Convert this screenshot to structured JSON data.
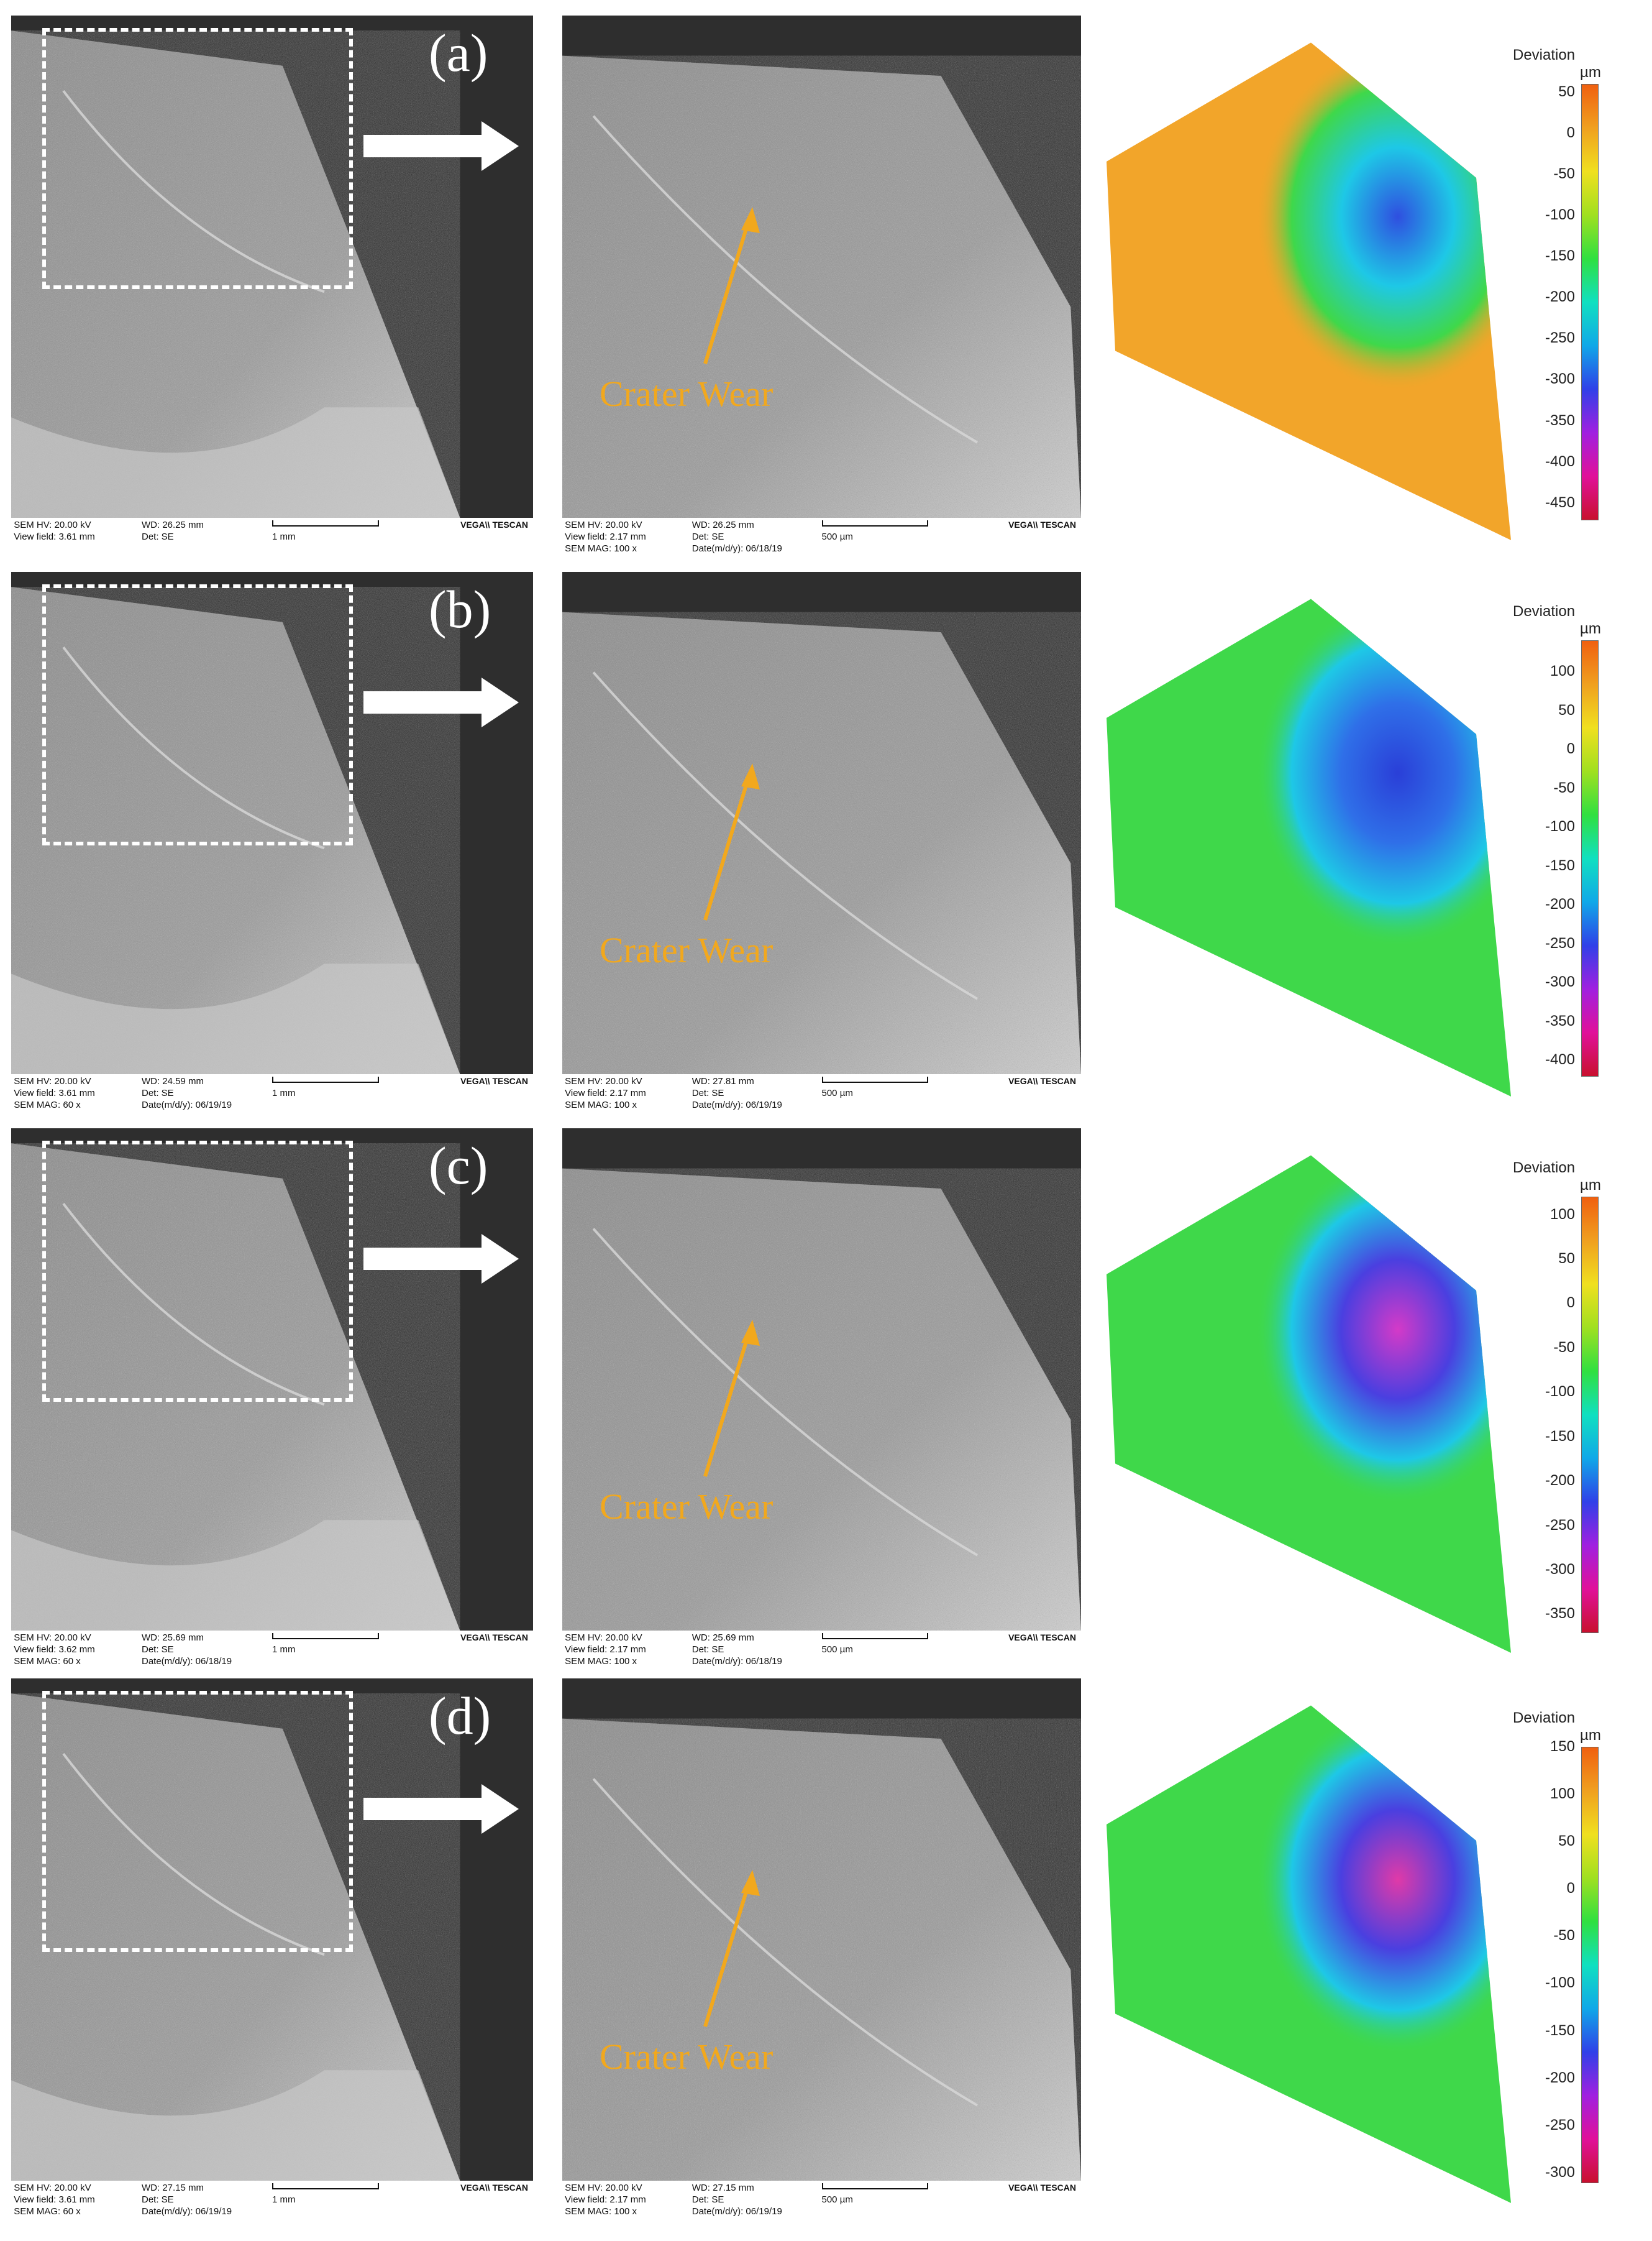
{
  "panels": [
    {
      "label": "(a)",
      "crater_label": "Crater Wear",
      "sem_left": {
        "line1": [
          "SEM HV: 20.00 kV",
          "WD: 26.25 mm"
        ],
        "line2": [
          "View field: 3.61 mm",
          "Det: SE",
          "1 mm"
        ],
        "line3": [
          "",
          ""
        ],
        "logo": "VEGA\\\\ TESCAN"
      },
      "sem_right": {
        "line1": [
          "SEM HV: 20.00 kV",
          "WD: 26.25 mm"
        ],
        "line2": [
          "View field: 2.17 mm",
          "Det: SE",
          "500 µm"
        ],
        "line3": [
          "SEM MAG: 100 x",
          "Date(m/d/y): 06/18/19"
        ],
        "logo": "VEGA\\\\ TESCAN"
      },
      "legend": {
        "title": "Deviation",
        "unit": "µm",
        "ticks": [
          "50",
          "0",
          "-50",
          "-100",
          "-150",
          "-200",
          "-250",
          "-300",
          "-350",
          "-400",
          "-450"
        ],
        "range": [
          -470,
          60
        ]
      },
      "map_colors": {
        "base": "#f2a52a",
        "crater_outer": "#3fd84a",
        "crater_mid": "#1ec8e6",
        "crater_core": "#2f4fe0"
      }
    },
    {
      "label": "(b)",
      "crater_label": "Crater Wear",
      "sem_left": {
        "line1": [
          "SEM HV: 20.00 kV",
          "WD: 24.59 mm"
        ],
        "line2": [
          "View field: 3.61 mm",
          "Det: SE",
          "1 mm"
        ],
        "line3": [
          "SEM MAG: 60 x",
          "Date(m/d/y): 06/19/19"
        ],
        "logo": "VEGA\\\\ TESCAN"
      },
      "sem_right": {
        "line1": [
          "SEM HV: 20.00 kV",
          "WD: 27.81 mm"
        ],
        "line2": [
          "View field: 2.17 mm",
          "Det: SE",
          "500 µm"
        ],
        "line3": [
          "SEM MAG: 100 x",
          "Date(m/d/y): 06/19/19"
        ],
        "logo": "VEGA\\\\ TESCAN"
      },
      "legend": {
        "title": "Deviation",
        "unit": "µm",
        "ticks": [
          "100",
          "50",
          "0",
          "-50",
          "-100",
          "-150",
          "-200",
          "-250",
          "-300",
          "-350",
          "-400"
        ],
        "range": [
          -420,
          140
        ]
      },
      "map_colors": {
        "base": "#3fd84a",
        "crater_outer": "#1ec8e6",
        "crater_mid": "#2f6fe8",
        "crater_core": "#2a3fd8"
      }
    },
    {
      "label": "(c)",
      "crater_label": "Crater Wear",
      "sem_left": {
        "line1": [
          "SEM HV: 20.00 kV",
          "WD: 25.69 mm"
        ],
        "line2": [
          "View field: 3.62 mm",
          "Det: SE",
          "1 mm"
        ],
        "line3": [
          "SEM MAG: 60 x",
          "Date(m/d/y): 06/18/19"
        ],
        "logo": "VEGA\\\\ TESCAN"
      },
      "sem_right": {
        "line1": [
          "SEM HV: 20.00 kV",
          "WD: 25.69 mm"
        ],
        "line2": [
          "View field: 2.17 mm",
          "Det: SE",
          "500 µm"
        ],
        "line3": [
          "SEM MAG: 100 x",
          "Date(m/d/y): 06/18/19"
        ],
        "logo": "VEGA\\\\ TESCAN"
      },
      "legend": {
        "title": "Deviation",
        "unit": "µm",
        "ticks": [
          "100",
          "50",
          "0",
          "-50",
          "-100",
          "-150",
          "-200",
          "-250",
          "-300",
          "-350"
        ],
        "range": [
          -370,
          120
        ]
      },
      "map_colors": {
        "base": "#3fd84a",
        "crater_outer": "#1ec8e6",
        "crater_mid": "#4a3fe0",
        "crater_core": "#d43ac8"
      }
    },
    {
      "label": "(d)",
      "crater_label": "Crater Wear",
      "sem_left": {
        "line1": [
          "SEM HV: 20.00 kV",
          "WD: 27.15 mm"
        ],
        "line2": [
          "View field: 3.61 mm",
          "Det: SE",
          "1 mm"
        ],
        "line3": [
          "SEM MAG: 60 x",
          "Date(m/d/y): 06/19/19"
        ],
        "logo": "VEGA\\\\ TESCAN"
      },
      "sem_right": {
        "line1": [
          "SEM HV: 20.00 kV",
          "WD: 27.15 mm"
        ],
        "line2": [
          "View field: 2.17 mm",
          "Det: SE",
          "500 µm"
        ],
        "line3": [
          "SEM MAG: 100 x",
          "Date(m/d/y): 06/19/19"
        ],
        "logo": "VEGA\\\\ TESCAN"
      },
      "legend": {
        "title": "Deviation",
        "unit": "µm",
        "ticks": [
          "150",
          "100",
          "50",
          "0",
          "-50",
          "-100",
          "-150",
          "-200",
          "-250",
          "-300"
        ],
        "range": [
          -310,
          150
        ]
      },
      "map_colors": {
        "base": "#3fd84a",
        "crater_outer": "#1ec8e6",
        "crater_mid": "#4a3fe0",
        "crater_core": "#e03aa8"
      }
    }
  ],
  "legend_gradient": [
    "#c8102e",
    "#e0109a",
    "#a020e0",
    "#3040e8",
    "#10a8e8",
    "#10e0c0",
    "#30e040",
    "#a0e020",
    "#f0e020",
    "#f0a020",
    "#f06010"
  ]
}
